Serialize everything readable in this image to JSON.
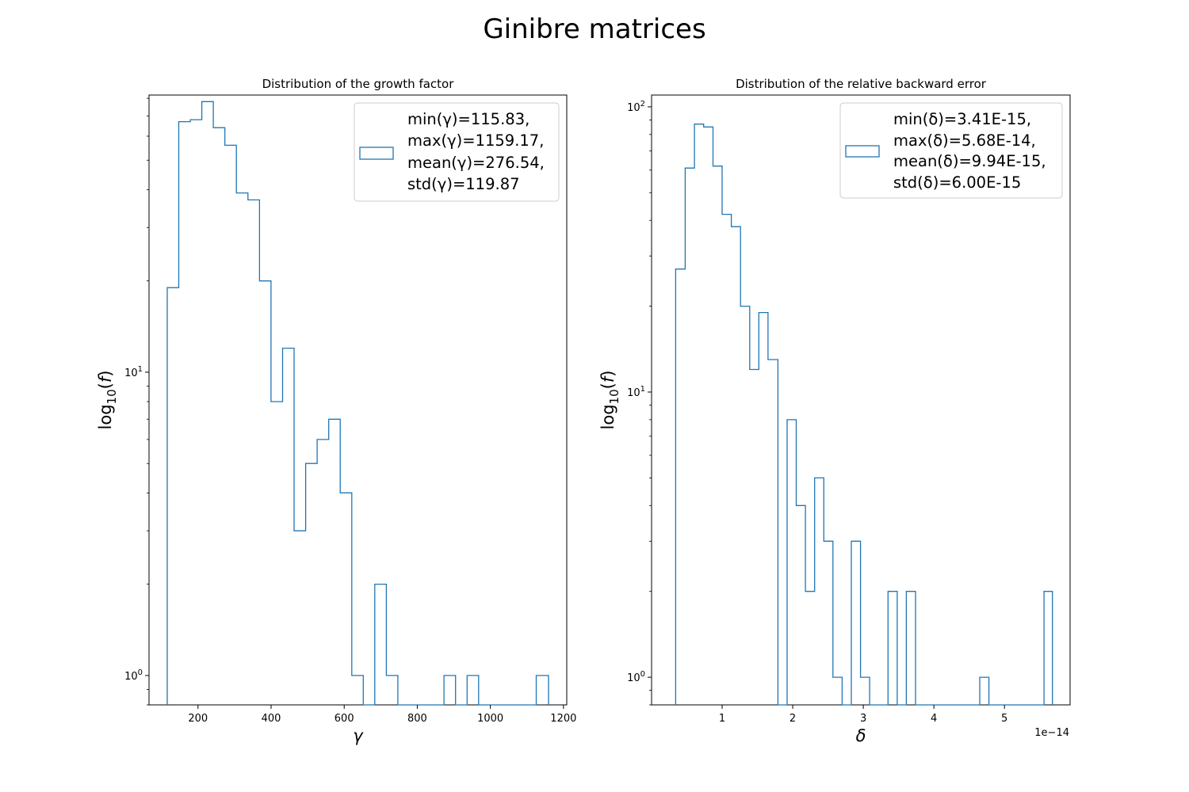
{
  "figure": {
    "title": "Ginibre matrices"
  },
  "chart_data": [
    {
      "type": "histogram",
      "title": "Distribution of the growth factor",
      "xlabel": "γ",
      "ylabel": "log10(f)",
      "yscale": "log",
      "xlim": [
        66,
        1209
      ],
      "ylim": [
        0.8,
        82
      ],
      "grid": false,
      "legend_position": "upper right",
      "color": "#1f77b4",
      "x_ticks": [
        200,
        400,
        600,
        800,
        1000,
        1200
      ],
      "y_ticks": [
        {
          "value": 1,
          "base": "10",
          "exp": "0"
        },
        {
          "value": 10,
          "base": "10",
          "exp": "1"
        }
      ],
      "bin_edges": [
        115.83,
        147.4,
        178.9,
        210.5,
        242.0,
        273.6,
        305.1,
        336.7,
        368.3,
        399.8,
        431.4,
        462.9,
        494.5,
        526.0,
        557.6,
        589.1,
        620.7,
        652.3,
        683.8,
        715.4,
        746.9,
        778.5,
        810.0,
        841.6,
        873.1,
        904.7,
        936.3,
        967.8,
        999.4,
        1030.9,
        1062.5,
        1094.0,
        1125.6,
        1159.17
      ],
      "counts": [
        19,
        67,
        68,
        78,
        64,
        56,
        39,
        37,
        20,
        8,
        12,
        3,
        5,
        6,
        7,
        4,
        1,
        0,
        2,
        1,
        0,
        0,
        0,
        0,
        1,
        0,
        1,
        0,
        0,
        0,
        0,
        0,
        1
      ],
      "legend_lines": [
        "min(γ)=115.83,",
        "max(γ)=1159.17,",
        "mean(γ)=276.54,",
        "std(γ)=119.87"
      ]
    },
    {
      "type": "histogram",
      "title": "Distribution of the relative backward error",
      "xlabel": "δ",
      "ylabel": "log10(f)",
      "yscale": "log",
      "xlim": [
        0.0,
        5.93
      ],
      "x_unit_multiplier": "1e−14",
      "ylim": [
        0.8,
        110
      ],
      "grid": false,
      "legend_position": "upper right",
      "color": "#1f77b4",
      "x_ticks": [
        1,
        2,
        3,
        4,
        5
      ],
      "y_ticks": [
        {
          "value": 1,
          "base": "10",
          "exp": "0"
        },
        {
          "value": 10,
          "base": "10",
          "exp": "1"
        },
        {
          "value": 100,
          "base": "10",
          "exp": "2"
        }
      ],
      "bin_edges": [
        0.341,
        0.476,
        0.608,
        0.738,
        0.87,
        1.0,
        1.13,
        1.26,
        1.39,
        1.52,
        1.65,
        1.79,
        1.92,
        2.05,
        2.18,
        2.31,
        2.44,
        2.57,
        2.7,
        2.83,
        2.96,
        3.09,
        3.22,
        3.35,
        3.48,
        3.61,
        3.74,
        3.87,
        4.0,
        4.13,
        4.26,
        4.39,
        4.52,
        4.65,
        4.78,
        4.91,
        5.04,
        5.17,
        5.3,
        5.43,
        5.56,
        5.68
      ],
      "counts": [
        27,
        61,
        87,
        85,
        62,
        42,
        38,
        20,
        12,
        19,
        13,
        0,
        8,
        4,
        2,
        5,
        3,
        1,
        0,
        3,
        1,
        0,
        0,
        2,
        0,
        2,
        0,
        0,
        0,
        0,
        0,
        0,
        0,
        1,
        0,
        0,
        0,
        0,
        0,
        0,
        2
      ],
      "legend_lines": [
        "min(δ)=3.41E-15,",
        "max(δ)=5.68E-14,",
        "mean(δ)=9.94E-15,",
        "std(δ)=6.00E-15"
      ]
    }
  ]
}
